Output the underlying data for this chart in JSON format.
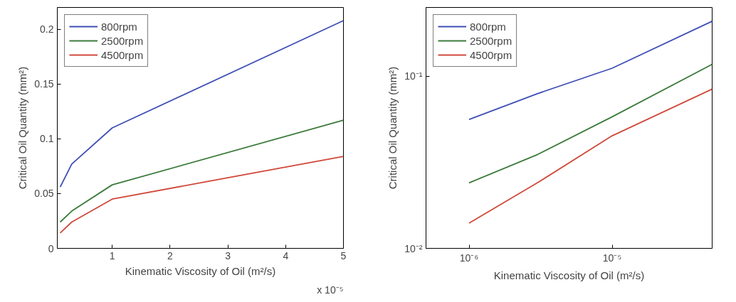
{
  "chart_data": [
    {
      "type": "line",
      "xlabel": "Kinematic Viscosity of Oil (m²/s)",
      "ylabel": "Critical Oil Quantity (mm²)",
      "annotations": [
        "x 10⁻⁵"
      ],
      "x": [
        0.1,
        0.3,
        1,
        5
      ],
      "xlim": [
        0.05,
        5
      ],
      "ylim": [
        0,
        0.22
      ],
      "xticks": [
        1,
        2,
        3,
        4,
        5
      ],
      "yticks": [
        0,
        0.05,
        0.1,
        0.15,
        0.2
      ],
      "series": [
        {
          "name": "800rpm",
          "color": "#3f4fb5",
          "values": [
            0.056,
            0.077,
            0.11,
            0.208
          ]
        },
        {
          "name": "2500rpm",
          "color": "#3b7a3b",
          "values": [
            0.024,
            0.034,
            0.058,
            0.117
          ]
        },
        {
          "name": "4500rpm",
          "color": "#d0493a",
          "values": [
            0.014,
            0.024,
            0.045,
            0.084
          ]
        }
      ],
      "legend": "top left",
      "grid": false
    },
    {
      "type": "line",
      "xlabel": "Kinematic Viscosity of Oil (m²/s)",
      "ylabel": "Critical Oil Quantity (mm²)",
      "log": "xy",
      "x": [
        1e-06,
        3e-06,
        1e-05,
        5e-05
      ],
      "xlim": [
        5e-07,
        5e-05
      ],
      "ylim": [
        0.01,
        0.25
      ],
      "xticks": [
        {
          "value": 1e-06,
          "label": "10⁻⁶"
        },
        {
          "value": 1e-05,
          "label": "10⁻⁵"
        }
      ],
      "yticks": [
        {
          "value": 0.01,
          "label": "10⁻²"
        },
        {
          "value": 0.1,
          "label": "10⁻¹"
        }
      ],
      "series": [
        {
          "name": "800rpm",
          "color": "#3f4fb5",
          "values": [
            0.056,
            0.079,
            0.111,
            0.208
          ]
        },
        {
          "name": "2500rpm",
          "color": "#3b7a3b",
          "values": [
            0.024,
            0.035,
            0.058,
            0.117
          ]
        },
        {
          "name": "4500rpm",
          "color": "#d0493a",
          "values": [
            0.014,
            0.024,
            0.045,
            0.084
          ]
        }
      ],
      "legend": "top left",
      "grid": false
    }
  ]
}
